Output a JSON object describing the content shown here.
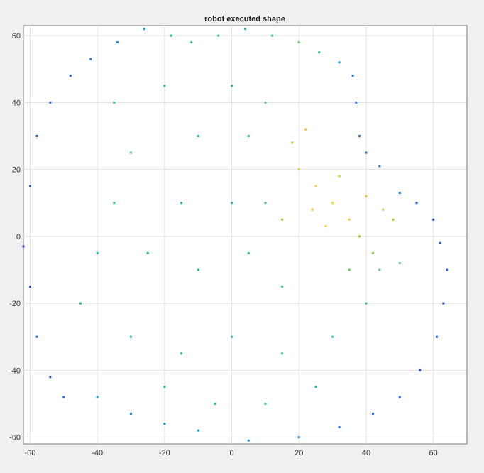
{
  "chart_data": {
    "type": "scatter",
    "title": "robot executed shape",
    "xlabel": "",
    "ylabel": "",
    "xlim": [
      -62,
      70
    ],
    "ylim": [
      -62,
      63
    ],
    "x_ticks": [
      -60,
      -40,
      -20,
      0,
      20,
      40,
      60
    ],
    "y_ticks": [
      -60,
      -40,
      -20,
      0,
      20,
      40,
      60
    ],
    "grid": true,
    "colormap": "parula",
    "colors": {
      "low": "#3e26a8",
      "mid": "#1fb8a4",
      "high": "#f0c92d"
    },
    "series": [
      {
        "values": [
          {
            "x": -62,
            "y": -3,
            "c": 0.05
          },
          {
            "x": -60,
            "y": -15,
            "c": 0.1
          },
          {
            "x": -58,
            "y": -30,
            "c": 0.1
          },
          {
            "x": -54,
            "y": -42,
            "c": 0.1
          },
          {
            "x": -50,
            "y": -48,
            "c": 0.15
          },
          {
            "x": -60,
            "y": 15,
            "c": 0.1
          },
          {
            "x": -58,
            "y": 30,
            "c": 0.1
          },
          {
            "x": -54,
            "y": 40,
            "c": 0.12
          },
          {
            "x": -48,
            "y": 48,
            "c": 0.12
          },
          {
            "x": -42,
            "y": 53,
            "c": 0.15
          },
          {
            "x": -34,
            "y": 58,
            "c": 0.2
          },
          {
            "x": -26,
            "y": 62,
            "c": 0.3
          },
          {
            "x": -18,
            "y": 60,
            "c": 0.45
          },
          {
            "x": -12,
            "y": 58,
            "c": 0.5
          },
          {
            "x": -4,
            "y": 60,
            "c": 0.5
          },
          {
            "x": 4,
            "y": 62,
            "c": 0.5
          },
          {
            "x": 12,
            "y": 60,
            "c": 0.55
          },
          {
            "x": 20,
            "y": 58,
            "c": 0.6
          },
          {
            "x": 26,
            "y": 55,
            "c": 0.5
          },
          {
            "x": 32,
            "y": 52,
            "c": 0.3
          },
          {
            "x": 36,
            "y": 48,
            "c": 0.2
          },
          {
            "x": 37,
            "y": 40,
            "c": 0.15
          },
          {
            "x": 38,
            "y": 30,
            "c": 0.15
          },
          {
            "x": 40,
            "y": 25,
            "c": 0.1
          },
          {
            "x": 44,
            "y": 21,
            "c": 0.1
          },
          {
            "x": 50,
            "y": 13,
            "c": 0.2
          },
          {
            "x": 55,
            "y": 10,
            "c": 0.12
          },
          {
            "x": 60,
            "y": 5,
            "c": 0.1
          },
          {
            "x": 62,
            "y": -2,
            "c": 0.1
          },
          {
            "x": 64,
            "y": -10,
            "c": 0.1
          },
          {
            "x": 63,
            "y": -20,
            "c": 0.1
          },
          {
            "x": 61,
            "y": -30,
            "c": 0.1
          },
          {
            "x": 56,
            "y": -40,
            "c": 0.1
          },
          {
            "x": 50,
            "y": -48,
            "c": 0.12
          },
          {
            "x": 42,
            "y": -53,
            "c": 0.15
          },
          {
            "x": 32,
            "y": -57,
            "c": 0.2
          },
          {
            "x": 20,
            "y": -60,
            "c": 0.25
          },
          {
            "x": 5,
            "y": -61,
            "c": 0.3
          },
          {
            "x": -10,
            "y": -58,
            "c": 0.3
          },
          {
            "x": -20,
            "y": -56,
            "c": 0.25
          },
          {
            "x": -30,
            "y": -53,
            "c": 0.25
          },
          {
            "x": -40,
            "y": -48,
            "c": 0.3
          },
          {
            "x": -45,
            "y": -20,
            "c": 0.45
          },
          {
            "x": -40,
            "y": -5,
            "c": 0.45
          },
          {
            "x": -35,
            "y": 10,
            "c": 0.45
          },
          {
            "x": -30,
            "y": 25,
            "c": 0.5
          },
          {
            "x": -35,
            "y": 40,
            "c": 0.45
          },
          {
            "x": -20,
            "y": 45,
            "c": 0.45
          },
          {
            "x": -10,
            "y": 30,
            "c": 0.45
          },
          {
            "x": 0,
            "y": 45,
            "c": 0.48
          },
          {
            "x": 5,
            "y": 30,
            "c": 0.5
          },
          {
            "x": 10,
            "y": 40,
            "c": 0.55
          },
          {
            "x": -15,
            "y": 10,
            "c": 0.45
          },
          {
            "x": 0,
            "y": 10,
            "c": 0.48
          },
          {
            "x": 10,
            "y": 10,
            "c": 0.55
          },
          {
            "x": -25,
            "y": -5,
            "c": 0.45
          },
          {
            "x": -10,
            "y": -10,
            "c": 0.45
          },
          {
            "x": 5,
            "y": -5,
            "c": 0.5
          },
          {
            "x": 15,
            "y": -15,
            "c": 0.5
          },
          {
            "x": -30,
            "y": -30,
            "c": 0.45
          },
          {
            "x": -15,
            "y": -35,
            "c": 0.48
          },
          {
            "x": 0,
            "y": -30,
            "c": 0.48
          },
          {
            "x": 15,
            "y": -35,
            "c": 0.5
          },
          {
            "x": 30,
            "y": -30,
            "c": 0.5
          },
          {
            "x": 40,
            "y": -20,
            "c": 0.5
          },
          {
            "x": 35,
            "y": -10,
            "c": 0.6
          },
          {
            "x": -5,
            "y": -50,
            "c": 0.45
          },
          {
            "x": 10,
            "y": -50,
            "c": 0.5
          },
          {
            "x": 25,
            "y": -45,
            "c": 0.45
          },
          {
            "x": -20,
            "y": -45,
            "c": 0.45
          },
          {
            "x": 18,
            "y": 28,
            "c": 0.8
          },
          {
            "x": 22,
            "y": 32,
            "c": 0.85
          },
          {
            "x": 20,
            "y": 20,
            "c": 0.8
          },
          {
            "x": 25,
            "y": 15,
            "c": 0.9
          },
          {
            "x": 30,
            "y": 10,
            "c": 0.92
          },
          {
            "x": 35,
            "y": 5,
            "c": 0.9
          },
          {
            "x": 28,
            "y": 3,
            "c": 0.88
          },
          {
            "x": 40,
            "y": 12,
            "c": 0.85
          },
          {
            "x": 45,
            "y": 8,
            "c": 0.8
          },
          {
            "x": 48,
            "y": 5,
            "c": 0.75
          },
          {
            "x": 38,
            "y": 0,
            "c": 0.75
          },
          {
            "x": 42,
            "y": -5,
            "c": 0.65
          },
          {
            "x": 24,
            "y": 8,
            "c": 0.85
          },
          {
            "x": 32,
            "y": 18,
            "c": 0.85
          },
          {
            "x": 15,
            "y": 5,
            "c": 0.7
          },
          {
            "x": 44,
            "y": -10,
            "c": 0.55
          },
          {
            "x": 50,
            "y": -8,
            "c": 0.55
          }
        ]
      }
    ]
  }
}
